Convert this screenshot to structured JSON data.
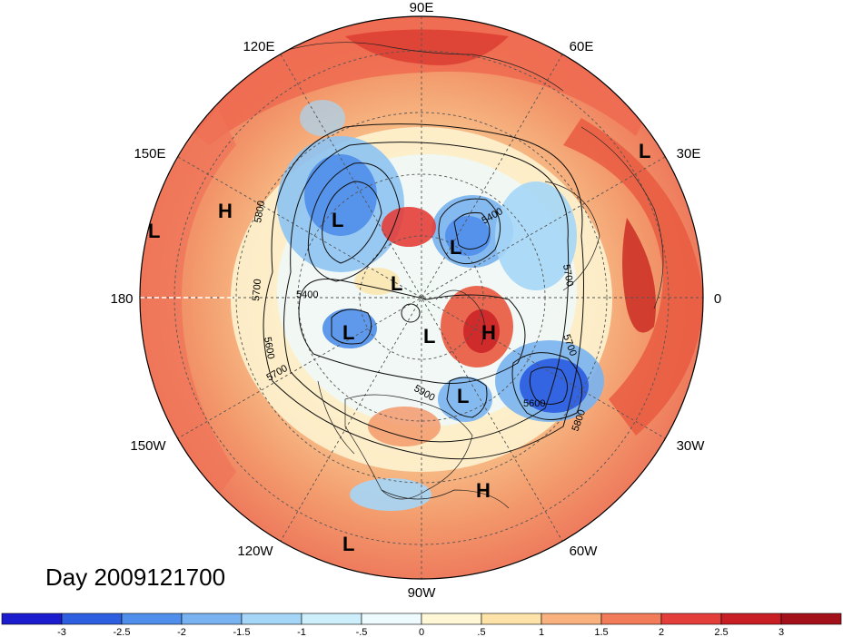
{
  "date_label": "Day 2009121700",
  "longitude_labels": [
    {
      "text": "90E",
      "key": "lon-90e"
    },
    {
      "text": "60E",
      "key": "lon-60e"
    },
    {
      "text": "120E",
      "key": "lon-120e"
    },
    {
      "text": "150E",
      "key": "lon-150e"
    },
    {
      "text": "30E",
      "key": "lon-30e"
    },
    {
      "text": "180",
      "key": "lon-180"
    },
    {
      "text": "0",
      "key": "lon-0"
    },
    {
      "text": "150W",
      "key": "lon-150w"
    },
    {
      "text": "30W",
      "key": "lon-30w"
    },
    {
      "text": "120W",
      "key": "lon-120w"
    },
    {
      "text": "60W",
      "key": "lon-60w"
    },
    {
      "text": "90W",
      "key": "lon-90w"
    }
  ],
  "pressure_centers": [
    {
      "type": "L"
    },
    {
      "type": "H"
    },
    {
      "type": "L"
    },
    {
      "type": "L"
    },
    {
      "type": "L"
    },
    {
      "type": "L"
    },
    {
      "type": "L"
    },
    {
      "type": "L"
    },
    {
      "type": "H"
    },
    {
      "type": "L"
    },
    {
      "type": "H"
    },
    {
      "type": "L"
    }
  ],
  "contour_labels": [
    "5800",
    "5700",
    "5600",
    "5400",
    "5400",
    "5700",
    "5700",
    "5600",
    "5800",
    "5700",
    "5900"
  ],
  "colorbar": {
    "ticks": [
      "-3",
      "-2.5",
      "-2",
      "-1.5",
      "-1",
      "-.5",
      "0",
      ".5",
      "1",
      "1.5",
      "2",
      "2.5",
      "3"
    ],
    "colors": [
      "#1c1ccf",
      "#2e5fe0",
      "#4f8eea",
      "#79b2f0",
      "#a5d6f7",
      "#cdeffc",
      "#edfbff",
      "#fff7d6",
      "#fde3a7",
      "#f9b27d",
      "#f27b5a",
      "#e43e3a",
      "#c81d22",
      "#a3101a"
    ]
  }
}
